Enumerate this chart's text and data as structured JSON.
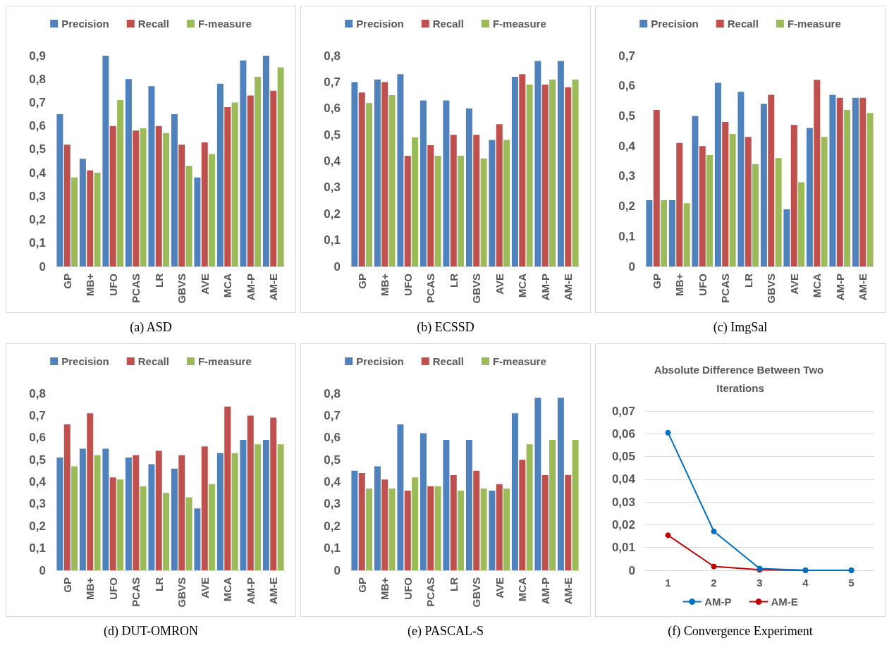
{
  "chart_data": [
    {
      "type": "bar",
      "annotations": [
        "(a) ASD"
      ],
      "categories": [
        "GP",
        "MB+",
        "UFO",
        "PCAS",
        "LR",
        "GBVS",
        "AVE",
        "MCA",
        "AM-P",
        "AM-E"
      ],
      "legend": "top",
      "ylim": [
        0,
        0.9
      ],
      "yticks": [
        {
          "value": 0,
          "label": "0"
        },
        {
          "value": 0.1,
          "label": "0,1"
        },
        {
          "value": 0.2,
          "label": "0,2"
        },
        {
          "value": 0.3,
          "label": "0,3"
        },
        {
          "value": 0.4,
          "label": "0,4"
        },
        {
          "value": 0.5,
          "label": "0,5"
        },
        {
          "value": 0.6,
          "label": "0,6"
        },
        {
          "value": 0.7,
          "label": "0,7"
        },
        {
          "value": 0.8,
          "label": "0,8"
        },
        {
          "value": 0.9,
          "label": "0,9"
        }
      ],
      "series": [
        {
          "name": "Precision",
          "color": "#4f81bd",
          "values": [
            0.65,
            0.46,
            0.9,
            0.8,
            0.77,
            0.65,
            0.38,
            0.78,
            0.88,
            0.9
          ]
        },
        {
          "name": "Recall",
          "color": "#c0504d",
          "values": [
            0.52,
            0.41,
            0.6,
            0.58,
            0.6,
            0.52,
            0.53,
            0.68,
            0.73,
            0.75
          ]
        },
        {
          "name": "F-measure",
          "color": "#9bbb59",
          "values": [
            0.38,
            0.4,
            0.71,
            0.59,
            0.57,
            0.43,
            0.48,
            0.7,
            0.81,
            0.85
          ]
        }
      ]
    },
    {
      "type": "bar",
      "annotations": [
        "(b) ECSSD"
      ],
      "categories": [
        "GP",
        "MB+",
        "UFO",
        "PCAS",
        "LR",
        "GBVS",
        "AVE",
        "MCA",
        "AM-P",
        "AM-E"
      ],
      "legend": "top",
      "ylim": [
        0,
        0.8
      ],
      "yticks": [
        {
          "value": 0,
          "label": "0"
        },
        {
          "value": 0.1,
          "label": "0,1"
        },
        {
          "value": 0.2,
          "label": "0,2"
        },
        {
          "value": 0.3,
          "label": "0,3"
        },
        {
          "value": 0.4,
          "label": "0,4"
        },
        {
          "value": 0.5,
          "label": "0,5"
        },
        {
          "value": 0.6,
          "label": "0,6"
        },
        {
          "value": 0.7,
          "label": "0,7"
        },
        {
          "value": 0.8,
          "label": "0,8"
        }
      ],
      "series": [
        {
          "name": "Precision",
          "color": "#4f81bd",
          "values": [
            0.7,
            0.71,
            0.73,
            0.63,
            0.63,
            0.6,
            0.48,
            0.72,
            0.78,
            0.78
          ]
        },
        {
          "name": "Recall",
          "color": "#c0504d",
          "values": [
            0.66,
            0.7,
            0.42,
            0.46,
            0.5,
            0.5,
            0.54,
            0.73,
            0.69,
            0.68
          ]
        },
        {
          "name": "F-measure",
          "color": "#9bbb59",
          "values": [
            0.62,
            0.65,
            0.49,
            0.42,
            0.42,
            0.41,
            0.48,
            0.69,
            0.71,
            0.71
          ]
        }
      ]
    },
    {
      "type": "bar",
      "annotations": [
        "(c) ImgSal"
      ],
      "categories": [
        "GP",
        "MB+",
        "UFO",
        "PCAS",
        "LR",
        "GBVS",
        "AVE",
        "MCA",
        "AM-P",
        "AM-E"
      ],
      "legend": "top",
      "ylim": [
        0,
        0.7
      ],
      "yticks": [
        {
          "value": 0,
          "label": "0"
        },
        {
          "value": 0.1,
          "label": "0,1"
        },
        {
          "value": 0.2,
          "label": "0,2"
        },
        {
          "value": 0.3,
          "label": "0,3"
        },
        {
          "value": 0.4,
          "label": "0,4"
        },
        {
          "value": 0.5,
          "label": "0,5"
        },
        {
          "value": 0.6,
          "label": "0,6"
        },
        {
          "value": 0.7,
          "label": "0,7"
        }
      ],
      "series": [
        {
          "name": "Precision",
          "color": "#4f81bd",
          "values": [
            0.22,
            0.22,
            0.5,
            0.61,
            0.58,
            0.54,
            0.19,
            0.46,
            0.57,
            0.56
          ]
        },
        {
          "name": "Recall",
          "color": "#c0504d",
          "values": [
            0.52,
            0.41,
            0.4,
            0.48,
            0.43,
            0.57,
            0.47,
            0.62,
            0.56,
            0.56
          ]
        },
        {
          "name": "F-measure",
          "color": "#9bbb59",
          "values": [
            0.22,
            0.21,
            0.37,
            0.44,
            0.34,
            0.36,
            0.28,
            0.43,
            0.52,
            0.51
          ]
        }
      ]
    },
    {
      "type": "bar",
      "annotations": [
        "(d) DUT-OMRON"
      ],
      "categories": [
        "GP",
        "MB+",
        "UFO",
        "PCAS",
        "LR",
        "GBVS",
        "AVE",
        "MCA",
        "AM-P",
        "AM-E"
      ],
      "legend": "top",
      "ylim": [
        0,
        0.8
      ],
      "yticks": [
        {
          "value": 0,
          "label": "0"
        },
        {
          "value": 0.1,
          "label": "0,1"
        },
        {
          "value": 0.2,
          "label": "0,2"
        },
        {
          "value": 0.3,
          "label": "0,3"
        },
        {
          "value": 0.4,
          "label": "0,4"
        },
        {
          "value": 0.5,
          "label": "0,5"
        },
        {
          "value": 0.6,
          "label": "0,6"
        },
        {
          "value": 0.7,
          "label": "0,7"
        },
        {
          "value": 0.8,
          "label": "0,8"
        }
      ],
      "series": [
        {
          "name": "Precision",
          "color": "#4f81bd",
          "values": [
            0.51,
            0.55,
            0.55,
            0.51,
            0.48,
            0.46,
            0.28,
            0.53,
            0.59,
            0.59
          ]
        },
        {
          "name": "Recall",
          "color": "#c0504d",
          "values": [
            0.66,
            0.71,
            0.42,
            0.52,
            0.54,
            0.52,
            0.56,
            0.74,
            0.7,
            0.69
          ]
        },
        {
          "name": "F-measure",
          "color": "#9bbb59",
          "values": [
            0.47,
            0.52,
            0.41,
            0.38,
            0.35,
            0.33,
            0.39,
            0.53,
            0.57,
            0.57
          ]
        }
      ]
    },
    {
      "type": "bar",
      "annotations": [
        "(e) PASCAL-S"
      ],
      "categories": [
        "GP",
        "MB+",
        "UFO",
        "PCAS",
        "LR",
        "GBVS",
        "AVE",
        "MCA",
        "AM-P",
        "AM-E"
      ],
      "legend": "top",
      "ylim": [
        0,
        0.8
      ],
      "yticks": [
        {
          "value": 0,
          "label": "0"
        },
        {
          "value": 0.1,
          "label": "0,1"
        },
        {
          "value": 0.2,
          "label": "0,2"
        },
        {
          "value": 0.3,
          "label": "0,3"
        },
        {
          "value": 0.4,
          "label": "0,4"
        },
        {
          "value": 0.5,
          "label": "0,5"
        },
        {
          "value": 0.6,
          "label": "0,6"
        },
        {
          "value": 0.7,
          "label": "0,7"
        },
        {
          "value": 0.8,
          "label": "0,8"
        }
      ],
      "series": [
        {
          "name": "Precision",
          "color": "#4f81bd",
          "values": [
            0.45,
            0.47,
            0.66,
            0.62,
            0.59,
            0.59,
            0.36,
            0.71,
            0.78,
            0.78
          ]
        },
        {
          "name": "Recall",
          "color": "#c0504d",
          "values": [
            0.44,
            0.41,
            0.36,
            0.38,
            0.43,
            0.45,
            0.39,
            0.5,
            0.43,
            0.43
          ]
        },
        {
          "name": "F-measure",
          "color": "#9bbb59",
          "values": [
            0.37,
            0.37,
            0.42,
            0.38,
            0.36,
            0.37,
            0.37,
            0.57,
            0.59,
            0.59
          ]
        }
      ]
    },
    {
      "type": "line",
      "title": "Absolute Difference Between Two Iterations",
      "annotations": [
        "(f) Convergence Experiment"
      ],
      "categories": [
        "1",
        "2",
        "3",
        "4",
        "5"
      ],
      "legend": "bottom",
      "grid": "y",
      "marker": "circle",
      "ylim": [
        0,
        0.07
      ],
      "yticks": [
        {
          "value": 0,
          "label": "0"
        },
        {
          "value": 0.01,
          "label": "0,01"
        },
        {
          "value": 0.02,
          "label": "0,02"
        },
        {
          "value": 0.03,
          "label": "0,03"
        },
        {
          "value": 0.04,
          "label": "0,04"
        },
        {
          "value": 0.05,
          "label": "0,05"
        },
        {
          "value": 0.06,
          "label": "0,06"
        },
        {
          "value": 0.07,
          "label": "0,07"
        }
      ],
      "series": [
        {
          "name": "AM-P",
          "color": "#0070c0",
          "values": [
            0.0605,
            0.0171,
            0.0008,
            0,
            0
          ]
        },
        {
          "name": "AM-E",
          "color": "#c00000",
          "values": [
            0.0154,
            0.0017,
            0.0002,
            0,
            0
          ]
        }
      ]
    }
  ]
}
